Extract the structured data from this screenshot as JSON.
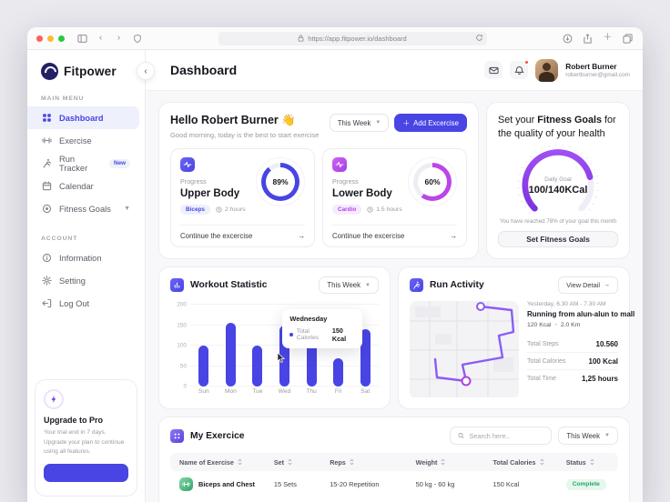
{
  "browser": {
    "url": "https://app.fitpower.io/dashboard"
  },
  "sidebar": {
    "logo_text": "Fitpower",
    "main_menu_label": "MAIN MENU",
    "account_label": "ACCOUNT",
    "menu": [
      {
        "label": "Dashboard"
      },
      {
        "label": "Exercise"
      },
      {
        "label": "Run Tracker",
        "badge": "New"
      },
      {
        "label": "Calendar"
      },
      {
        "label": "Fitness Goals"
      }
    ],
    "account": [
      {
        "label": "Information"
      },
      {
        "label": "Setting"
      },
      {
        "label": "Log Out"
      }
    ],
    "upgrade": {
      "title": "Upgrade to Pro",
      "text": "Your trial end in 7 days. Upgrade your plan to continue using all features."
    }
  },
  "header": {
    "title": "Dashboard",
    "user_name": "Robert Burner",
    "user_email": "robertburner@gmail.com"
  },
  "hello": {
    "greeting": "Hello Robert Burner 👋",
    "subtitle": "Good morning, today is the best to start exercise",
    "period": "This Week",
    "add_button": "Add Excercise"
  },
  "progress_cards": [
    {
      "label": "Progress",
      "title": "Upper Body",
      "tag": "Biceps",
      "duration": "2 hours",
      "percent": 89,
      "percent_label": "89%",
      "footer": "Continue the excercise",
      "color": "#4845E4"
    },
    {
      "label": "Progress",
      "title": "Lower Body",
      "tag": "Cardio",
      "duration": "1.5 hours",
      "percent": 60,
      "percent_label": "60%",
      "footer": "Continue the excercise",
      "color": "#BC45E8"
    }
  ],
  "goals": {
    "title_1": "Set your ",
    "title_2": "Fitness Goals",
    "title_3": " for the quality of your health",
    "daily_goal_label": "Daily Goal",
    "value": "100/140KCal",
    "percent": 78,
    "note": "You have reached 78% of your goal this month",
    "button": "Set Fitness Goals"
  },
  "chart_data": {
    "type": "bar",
    "title": "Workout Statistic",
    "period": "This Week",
    "categories": [
      "Sun",
      "Mon",
      "Tue",
      "Wed",
      "Thu",
      "Fri",
      "Sat"
    ],
    "values": [
      100,
      155,
      100,
      150,
      110,
      70,
      140
    ],
    "ylabel_ticks": [
      0,
      50,
      100,
      150,
      200
    ],
    "ylim": [
      0,
      200
    ],
    "bar_color": "#4845E4",
    "legend_position": "none",
    "tooltip": {
      "title": "Wednesday",
      "label": "Total Calories",
      "value": "150 Kcal"
    }
  },
  "run_activity": {
    "title": "Run Activity",
    "view_detail": "View Detail",
    "session_time": "Yesterday, 6.30 AM - 7.30 AM",
    "session_title": "Running from alun-alun to mall",
    "session_calories": "120 Kcal",
    "session_distance": "2.0 Km",
    "stats": [
      {
        "label": "Total Steps",
        "value": "10.560"
      },
      {
        "label": "Total Calories",
        "value": "100 Kcal"
      },
      {
        "label": "Total Time",
        "value": "1,25 hours"
      }
    ]
  },
  "exercise_table": {
    "title": "My Exercice",
    "search_placeholder": "Search here..",
    "period": "This Week",
    "columns": [
      "Name of Exercise",
      "Set",
      "Reps",
      "Weight",
      "Total Calories",
      "Status"
    ],
    "rows": [
      {
        "name": "Biceps and Chest",
        "set": "15 Sets",
        "reps": "15-20 Repetition",
        "weight": "50 kg - 60 kg",
        "calories": "150 Kcal",
        "status": "Complete"
      }
    ]
  }
}
